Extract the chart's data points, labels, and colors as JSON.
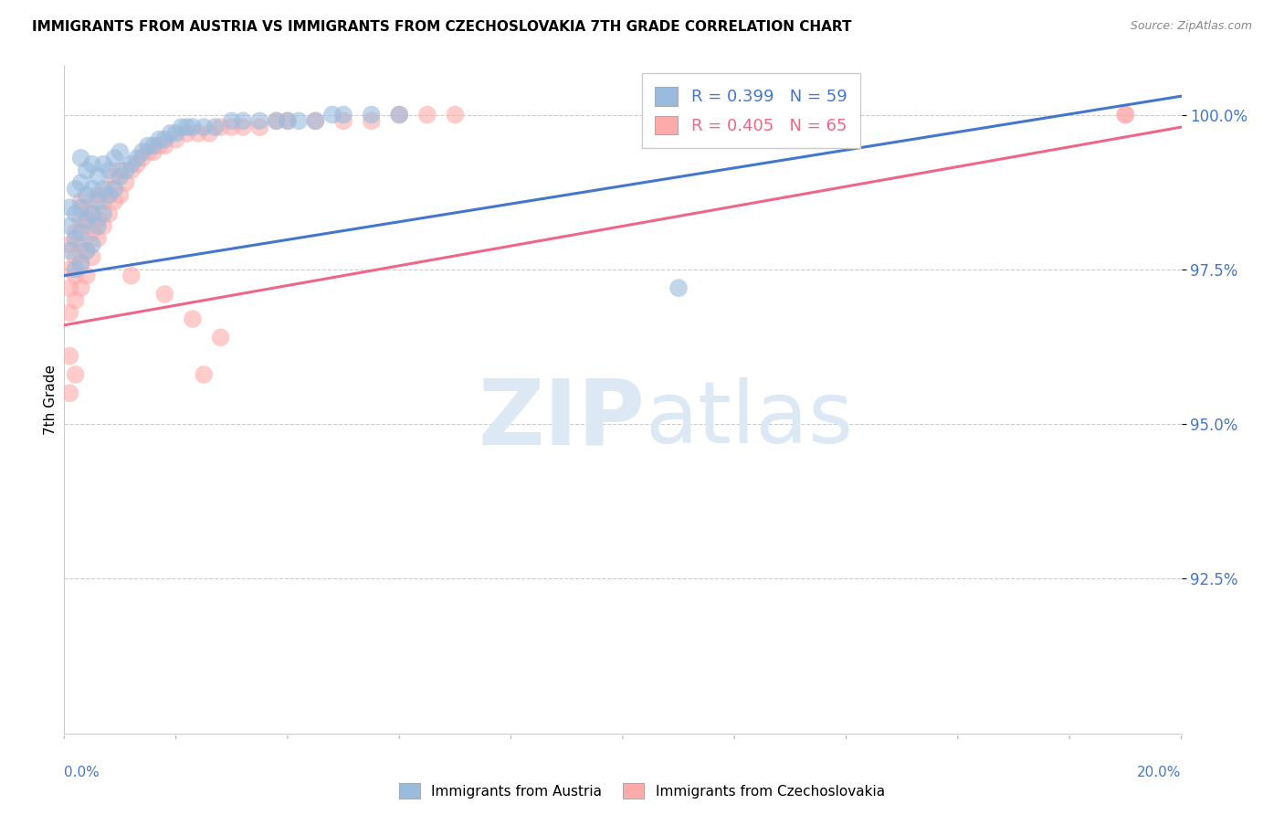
{
  "title": "IMMIGRANTS FROM AUSTRIA VS IMMIGRANTS FROM CZECHOSLOVAKIA 7TH GRADE CORRELATION CHART",
  "source": "Source: ZipAtlas.com",
  "ylabel": "7th Grade",
  "xlim": [
    0.0,
    0.2
  ],
  "ylim": [
    0.9,
    1.008
  ],
  "yticks": [
    0.925,
    0.95,
    0.975,
    1.0
  ],
  "ytick_labels": [
    "92.5%",
    "95.0%",
    "97.5%",
    "100.0%"
  ],
  "blue_R": 0.399,
  "blue_N": 59,
  "pink_R": 0.405,
  "pink_N": 65,
  "blue_color": "#99BBDD",
  "pink_color": "#FFAAAA",
  "blue_line_color": "#4477CC",
  "pink_line_color": "#EE6688",
  "watermark_zip": "ZIP",
  "watermark_atlas": "atlas",
  "watermark_color": "#DDE8F5",
  "legend_label_blue": "Immigrants from Austria",
  "legend_label_pink": "Immigrants from Czechoslovakia",
  "blue_scatter_x": [
    0.001,
    0.001,
    0.001,
    0.002,
    0.002,
    0.002,
    0.002,
    0.003,
    0.003,
    0.003,
    0.003,
    0.003,
    0.004,
    0.004,
    0.004,
    0.004,
    0.005,
    0.005,
    0.005,
    0.005,
    0.006,
    0.006,
    0.006,
    0.007,
    0.007,
    0.007,
    0.008,
    0.008,
    0.009,
    0.009,
    0.01,
    0.01,
    0.011,
    0.012,
    0.013,
    0.014,
    0.015,
    0.016,
    0.017,
    0.018,
    0.019,
    0.02,
    0.021,
    0.022,
    0.023,
    0.025,
    0.027,
    0.03,
    0.032,
    0.035,
    0.038,
    0.04,
    0.042,
    0.045,
    0.048,
    0.05,
    0.055,
    0.06,
    0.11
  ],
  "blue_scatter_y": [
    0.978,
    0.982,
    0.985,
    0.975,
    0.98,
    0.984,
    0.988,
    0.976,
    0.981,
    0.985,
    0.989,
    0.993,
    0.978,
    0.983,
    0.987,
    0.991,
    0.979,
    0.984,
    0.988,
    0.992,
    0.982,
    0.986,
    0.99,
    0.984,
    0.988,
    0.992,
    0.987,
    0.991,
    0.988,
    0.993,
    0.99,
    0.994,
    0.991,
    0.992,
    0.993,
    0.994,
    0.995,
    0.995,
    0.996,
    0.996,
    0.997,
    0.997,
    0.998,
    0.998,
    0.998,
    0.998,
    0.998,
    0.999,
    0.999,
    0.999,
    0.999,
    0.999,
    0.999,
    0.999,
    1.0,
    1.0,
    1.0,
    1.0,
    0.972
  ],
  "pink_scatter_x": [
    0.001,
    0.001,
    0.001,
    0.001,
    0.002,
    0.002,
    0.002,
    0.002,
    0.003,
    0.003,
    0.003,
    0.003,
    0.003,
    0.004,
    0.004,
    0.004,
    0.004,
    0.005,
    0.005,
    0.005,
    0.006,
    0.006,
    0.006,
    0.007,
    0.007,
    0.008,
    0.008,
    0.009,
    0.009,
    0.01,
    0.01,
    0.011,
    0.012,
    0.013,
    0.014,
    0.015,
    0.016,
    0.017,
    0.018,
    0.02,
    0.022,
    0.024,
    0.026,
    0.028,
    0.03,
    0.032,
    0.035,
    0.038,
    0.04,
    0.045,
    0.05,
    0.055,
    0.06,
    0.065,
    0.07,
    0.012,
    0.018,
    0.023,
    0.028,
    0.025,
    0.001,
    0.001,
    0.002,
    0.19,
    0.19
  ],
  "pink_scatter_y": [
    0.968,
    0.972,
    0.975,
    0.979,
    0.97,
    0.974,
    0.977,
    0.981,
    0.972,
    0.976,
    0.979,
    0.983,
    0.986,
    0.974,
    0.978,
    0.982,
    0.985,
    0.977,
    0.981,
    0.984,
    0.98,
    0.983,
    0.987,
    0.982,
    0.986,
    0.984,
    0.988,
    0.986,
    0.99,
    0.987,
    0.991,
    0.989,
    0.991,
    0.992,
    0.993,
    0.994,
    0.994,
    0.995,
    0.995,
    0.996,
    0.997,
    0.997,
    0.997,
    0.998,
    0.998,
    0.998,
    0.998,
    0.999,
    0.999,
    0.999,
    0.999,
    0.999,
    1.0,
    1.0,
    1.0,
    0.974,
    0.971,
    0.967,
    0.964,
    0.958,
    0.955,
    0.961,
    0.958,
    1.0,
    1.0
  ],
  "blue_trendline_x": [
    0.0,
    0.2
  ],
  "blue_trendline_y": [
    0.974,
    1.003
  ],
  "pink_trendline_x": [
    0.0,
    0.2
  ],
  "pink_trendline_y": [
    0.966,
    0.998
  ]
}
